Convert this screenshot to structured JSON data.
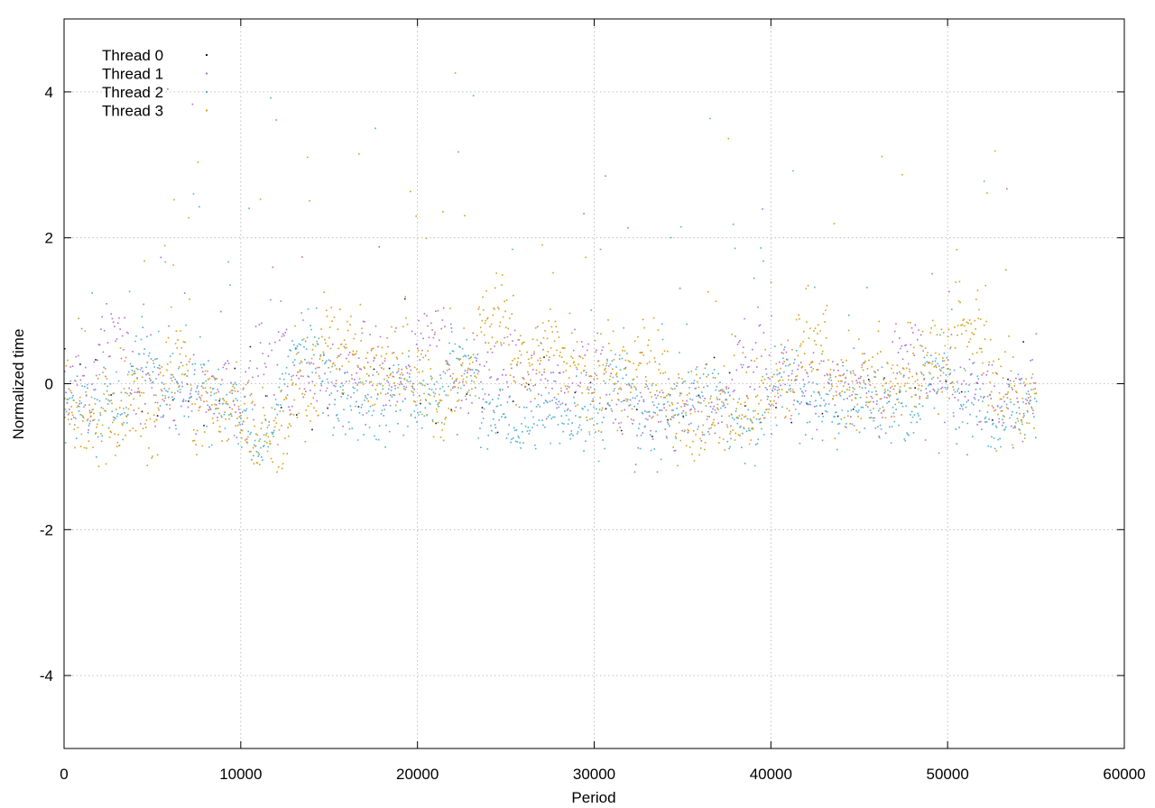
{
  "chart_data": {
    "type": "scatter",
    "title": "",
    "xlabel": "Period",
    "ylabel": "Normalized time",
    "xlim": [
      0,
      60000
    ],
    "ylim": [
      -5,
      5
    ],
    "xticks": [
      0,
      10000,
      20000,
      30000,
      40000,
      50000,
      60000
    ],
    "yticks": [
      -4,
      -2,
      0,
      2,
      4
    ],
    "grid": true,
    "legend_position": "top-left",
    "point_count_per_series": 55000,
    "series": [
      {
        "name": "Thread 0",
        "color": "#1a1a2e",
        "density": 0.04,
        "mean": -0.25,
        "spread": 0.35,
        "outlier_rate": 0.01
      },
      {
        "name": "Thread 1",
        "color": "#b26fd1",
        "density": 0.55,
        "mean": -0.1,
        "spread": 0.45,
        "outlier_rate": 0.02
      },
      {
        "name": "Thread 2",
        "color": "#4fb1cf",
        "density": 0.75,
        "mean": -0.3,
        "spread": 0.4,
        "outlier_rate": 0.02
      },
      {
        "name": "Thread 3",
        "color": "#d6a11c",
        "density": 0.85,
        "mean": -0.15,
        "spread": 0.5,
        "outlier_rate": 0.03
      }
    ]
  }
}
